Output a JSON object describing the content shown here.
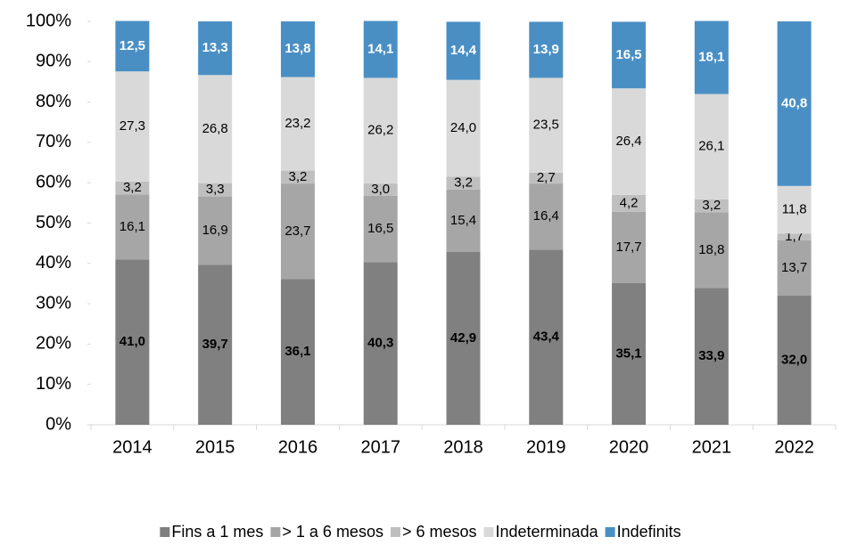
{
  "chart_data": {
    "type": "stacked_bar",
    "categories": [
      "2014",
      "2015",
      "2016",
      "2017",
      "2018",
      "2019",
      "2020",
      "2021",
      "2022"
    ],
    "series": [
      {
        "name": "Fins a 1 mes",
        "color": "#808080",
        "values": [
          41.0,
          39.7,
          36.1,
          40.3,
          42.9,
          43.4,
          35.1,
          33.9,
          32.0
        ],
        "value_labels": [
          "41,0",
          "39,7",
          "36,1",
          "40,3",
          "42,9",
          "43,4",
          "35,1",
          "33,9",
          "32,0"
        ]
      },
      {
        "name": "> 1 a 6 mesos",
        "color": "#a6a6a6",
        "values": [
          16.1,
          16.9,
          23.7,
          16.5,
          15.4,
          16.4,
          17.7,
          18.8,
          13.7
        ],
        "value_labels": [
          "16,1",
          "16,9",
          "23,7",
          "16,5",
          "15,4",
          "16,4",
          "17,7",
          "18,8",
          "13,7"
        ]
      },
      {
        "name": "> 6 mesos",
        "color": "#bfbfbf",
        "values": [
          3.2,
          3.3,
          3.2,
          3.0,
          3.2,
          2.7,
          4.2,
          3.2,
          1.7
        ],
        "value_labels": [
          "3,2",
          "3,3",
          "3,2",
          "3,0",
          "3,2",
          "2,7",
          "4,2",
          "3,2",
          "1,7"
        ]
      },
      {
        "name": "Indeterminada",
        "color": "#d9d9d9",
        "values": [
          27.3,
          26.8,
          23.2,
          26.2,
          24.0,
          23.5,
          26.4,
          26.1,
          11.8
        ],
        "value_labels": [
          "27,3",
          "26,8",
          "23,2",
          "26,2",
          "24,0",
          "23,5",
          "26,4",
          "26,1",
          "11,8"
        ]
      },
      {
        "name": "Indefinits",
        "color": "#4a8fc4",
        "values": [
          12.5,
          13.3,
          13.8,
          14.1,
          14.4,
          13.9,
          16.5,
          18.1,
          40.8
        ],
        "value_labels": [
          "12,5",
          "13,3",
          "13,8",
          "14,1",
          "14,4",
          "13,9",
          "16,5",
          "18,1",
          "40,8"
        ]
      }
    ],
    "ylim": [
      0,
      100
    ],
    "yticks": [
      {
        "value": 0,
        "label": "0%"
      },
      {
        "value": 10,
        "label": "10%"
      },
      {
        "value": 20,
        "label": "20%"
      },
      {
        "value": 30,
        "label": "30%"
      },
      {
        "value": 40,
        "label": "40%"
      },
      {
        "value": 50,
        "label": "50%"
      },
      {
        "value": 60,
        "label": "60%"
      },
      {
        "value": 70,
        "label": "70%"
      },
      {
        "value": 80,
        "label": "80%"
      },
      {
        "value": 90,
        "label": "90%"
      },
      {
        "value": 100,
        "label": "100%"
      }
    ],
    "legend": "bottom"
  }
}
